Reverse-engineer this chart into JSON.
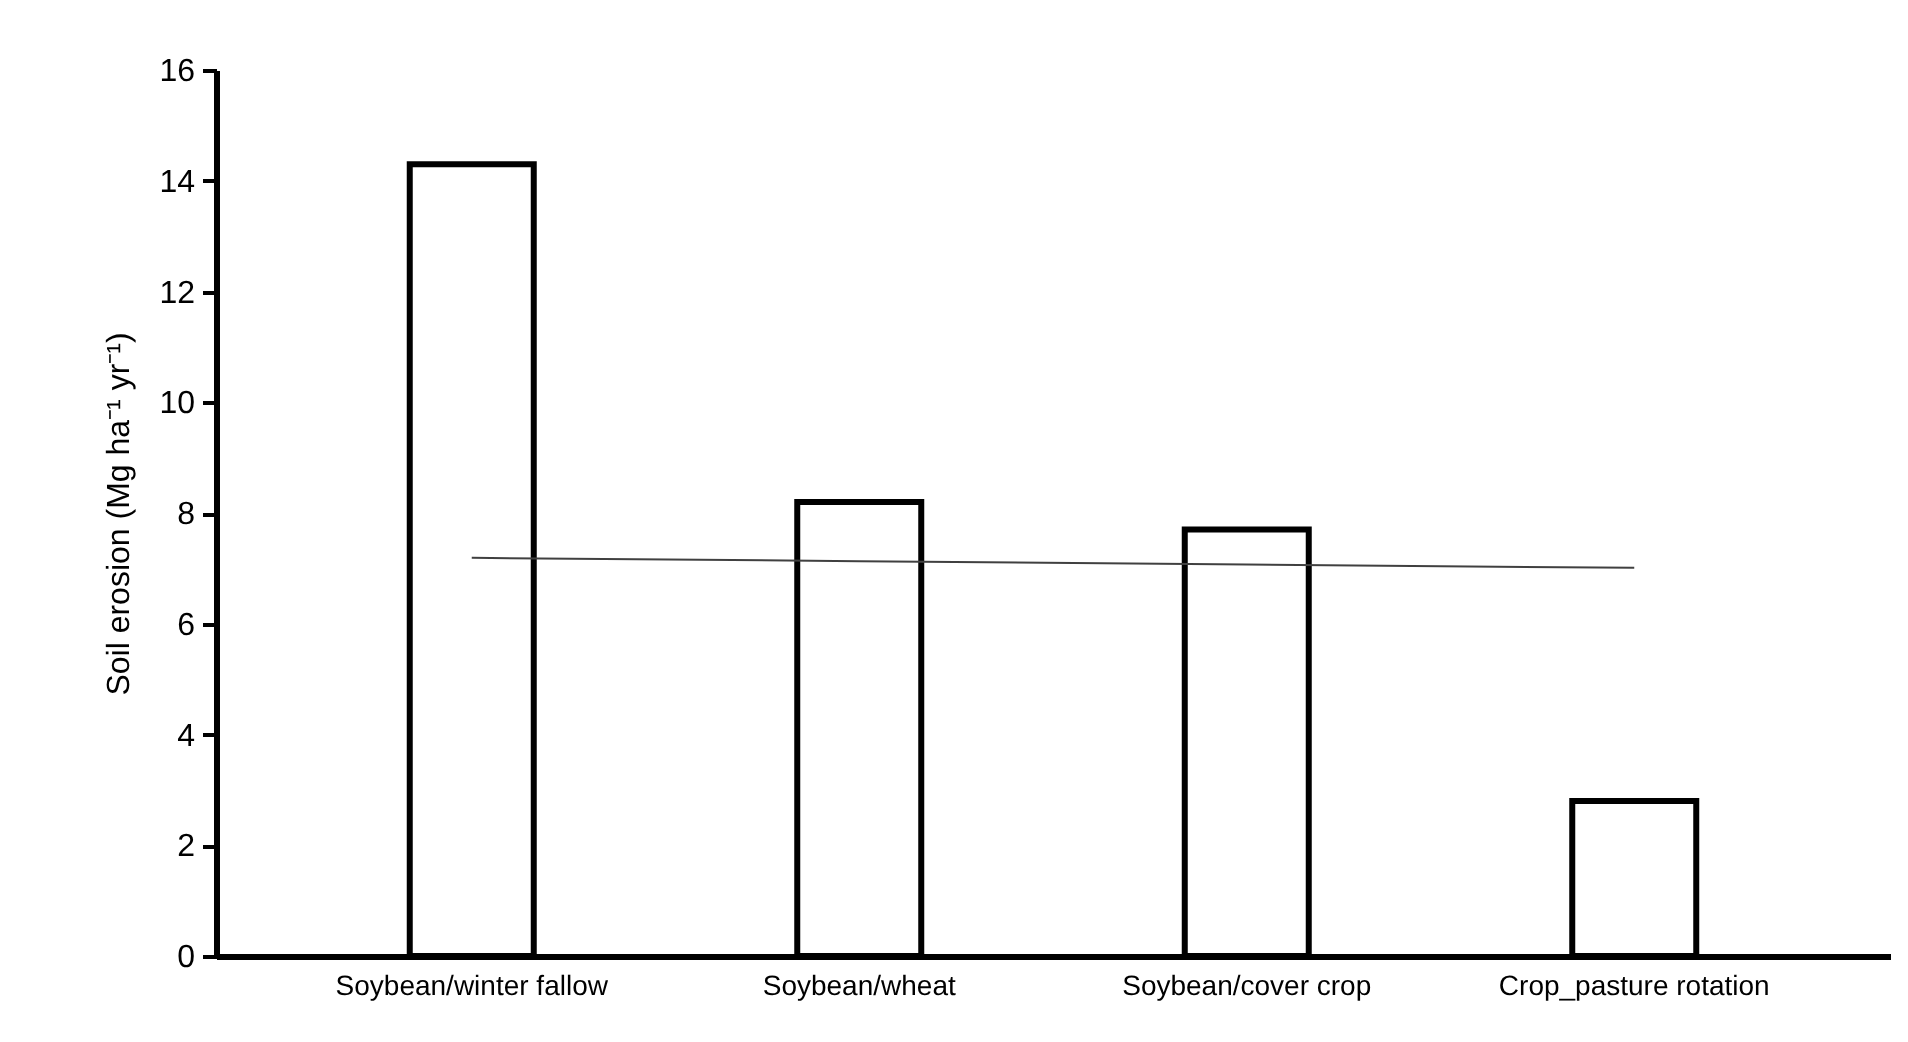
{
  "chart_data": {
    "type": "bar",
    "ylabel": "Soil erosion (Mg ha⁻¹ yr⁻¹)",
    "categories": [
      "Soybean/winter fallow",
      "Soybean/wheat",
      "Soybean/cover crop",
      "Crop_pasture rotation"
    ],
    "series": [
      {
        "color": "#ffffff",
        "values": [
          14.3,
          8.2,
          7.7,
          2.8
        ]
      },
      {
        "type": "line",
        "color": "#404040",
        "values": [
          7.19,
          7.13,
          7.07,
          7.01
        ]
      }
    ],
    "ylim": [
      0,
      16
    ],
    "yticks": [
      0,
      2,
      4,
      6,
      8,
      10,
      12,
      14,
      16
    ],
    "grid": false,
    "marker": "none",
    "line_style": "solid"
  }
}
